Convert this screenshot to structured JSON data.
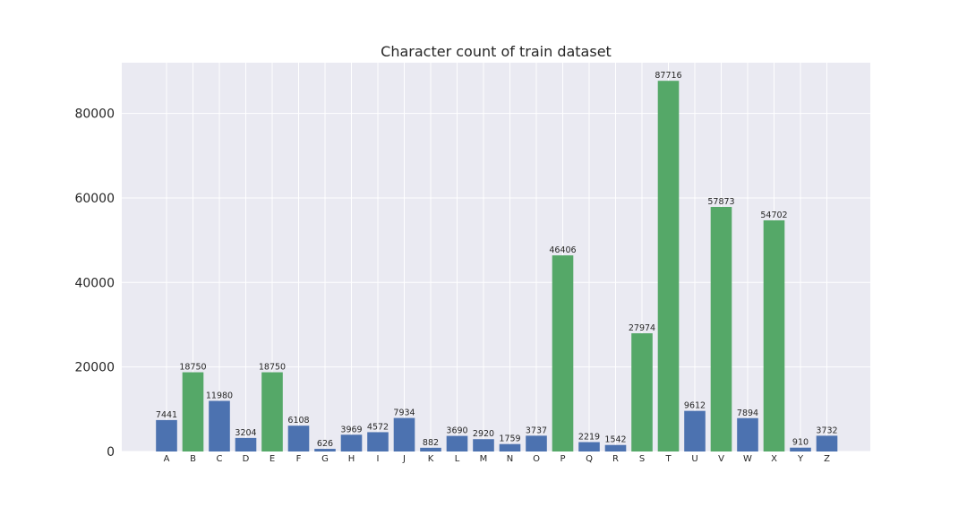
{
  "chart_data": {
    "type": "bar",
    "title": "Character count of train dataset",
    "xlabel": "",
    "ylabel": "",
    "categories": [
      "A",
      "B",
      "C",
      "D",
      "E",
      "F",
      "G",
      "H",
      "I",
      "J",
      "K",
      "L",
      "M",
      "N",
      "O",
      "P",
      "Q",
      "R",
      "S",
      "T",
      "U",
      "V",
      "W",
      "X",
      "Y",
      "Z"
    ],
    "values": [
      7441,
      18750,
      11980,
      3204,
      18750,
      6108,
      626,
      3969,
      4572,
      7934,
      882,
      3690,
      2920,
      1759,
      3737,
      46406,
      2219,
      1542,
      27974,
      87716,
      9612,
      57873,
      7894,
      54702,
      910,
      3732
    ],
    "bar_colors": [
      "#4c72b0",
      "#55a868",
      "#4c72b0",
      "#4c72b0",
      "#55a868",
      "#4c72b0",
      "#4c72b0",
      "#4c72b0",
      "#4c72b0",
      "#4c72b0",
      "#4c72b0",
      "#4c72b0",
      "#4c72b0",
      "#4c72b0",
      "#4c72b0",
      "#55a868",
      "#4c72b0",
      "#4c72b0",
      "#55a868",
      "#55a868",
      "#4c72b0",
      "#55a868",
      "#4c72b0",
      "#55a868",
      "#4c72b0",
      "#4c72b0"
    ],
    "ylim": [
      0,
      92000
    ],
    "yticks": [
      0,
      20000,
      40000,
      60000,
      80000
    ],
    "grid": true,
    "style": {
      "plot_background": "#eaeaf2",
      "grid_color": "#ffffff",
      "primary_color": "#4c72b0",
      "highlight_color": "#55a868",
      "text_color": "#262626"
    }
  }
}
